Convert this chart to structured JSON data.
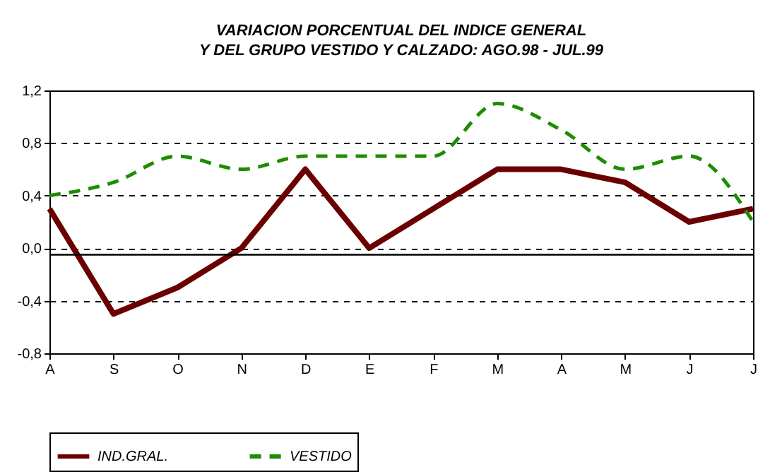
{
  "chart_data": {
    "type": "line",
    "title": "VARIACION PORCENTUAL DEL INDICE GENERAL",
    "subtitle": "Y DEL GRUPO VESTIDO Y CALZADO: AGO.98 - JUL.99",
    "categories": [
      "A",
      "S",
      "O",
      "N",
      "D",
      "E",
      "F",
      "M",
      "A",
      "M",
      "J",
      "J"
    ],
    "series": [
      {
        "name": "IND.GRAL.",
        "color": "#6b0000",
        "line_style": "solid",
        "values": [
          0.3,
          -0.5,
          -0.3,
          0.0,
          0.6,
          0.0,
          0.3,
          0.6,
          0.6,
          0.5,
          0.2,
          0.3
        ]
      },
      {
        "name": "VESTIDO",
        "color": "#1e8c00",
        "line_style": "dashed",
        "values": [
          0.4,
          0.5,
          0.7,
          0.6,
          0.7,
          0.7,
          0.7,
          1.1,
          0.9,
          0.6,
          0.7,
          0.2
        ]
      }
    ],
    "ylim": [
      -0.8,
      1.2
    ],
    "yticks": [
      {
        "value": -0.8,
        "label": "-0,8"
      },
      {
        "value": -0.4,
        "label": "-0,4"
      },
      {
        "value": 0.0,
        "label": "0,0"
      },
      {
        "value": 0.4,
        "label": "0,4"
      },
      {
        "value": 0.8,
        "label": "0,8"
      },
      {
        "value": 1.2,
        "label": "1,2"
      }
    ],
    "ref_lines": [
      {
        "axis": "y",
        "value": -0.05,
        "color": "#000000",
        "line_style": "solid"
      }
    ],
    "grid": "y",
    "legend": "bottom",
    "marker": "none"
  }
}
